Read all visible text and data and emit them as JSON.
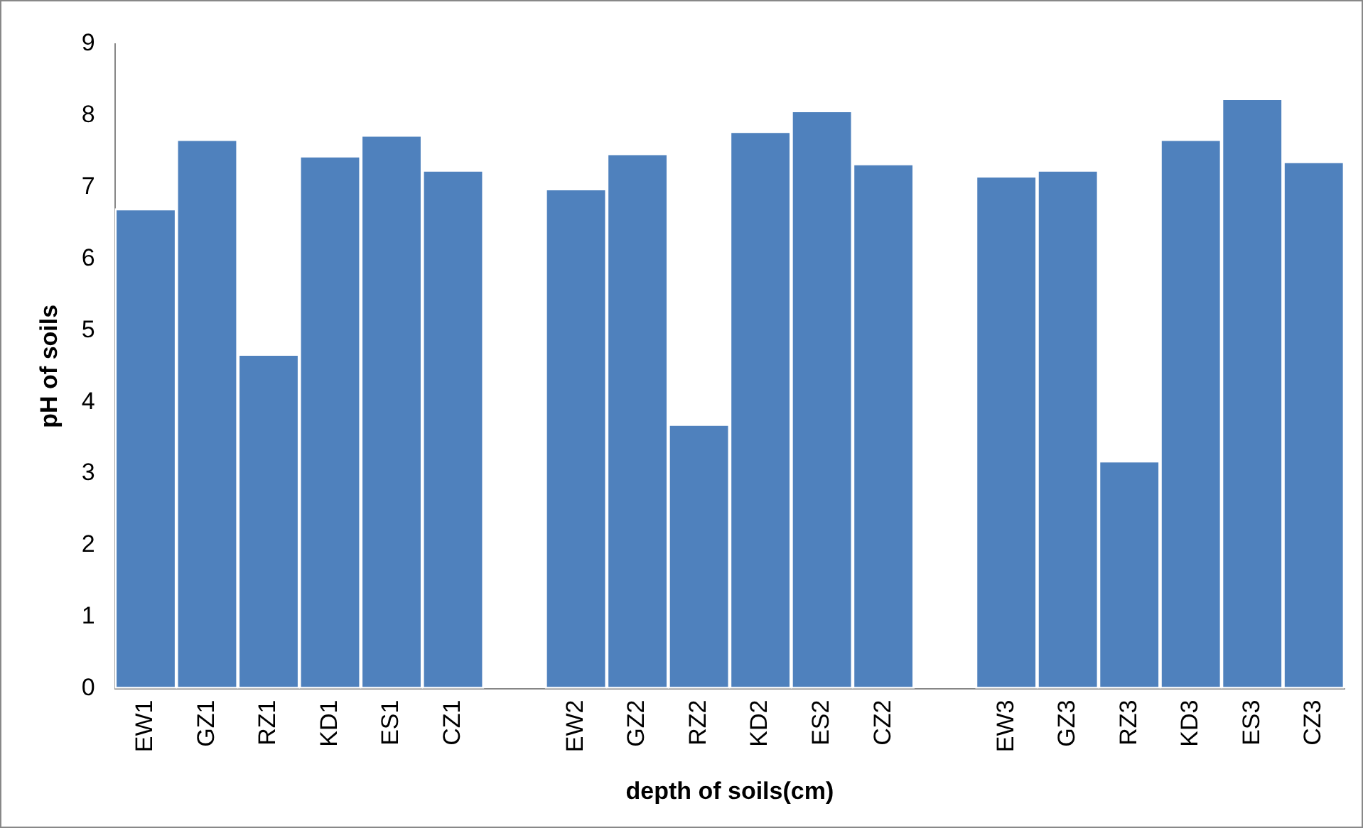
{
  "chart_data": {
    "type": "bar",
    "xlabel": "depth of soils(cm)",
    "ylabel": "pH of soils",
    "categories": [
      "EW1",
      "GZ1",
      "RZ1",
      "KD1",
      "ES1",
      "CZ1",
      null,
      "EW2",
      "GZ2",
      "RZ2",
      "KD2",
      "ES2",
      "CZ2",
      null,
      "EW3",
      "GZ3",
      "RZ3",
      "KD3",
      "ES3",
      "CZ3"
    ],
    "values": [
      6.7,
      7.67,
      4.67,
      7.44,
      7.73,
      7.24,
      null,
      6.98,
      7.47,
      3.69,
      7.78,
      8.07,
      7.33,
      null,
      7.16,
      7.24,
      3.18,
      7.67,
      8.24,
      7.36
    ],
    "color": "#4f81bd",
    "ylim": [
      0,
      9
    ],
    "yticks": [
      0,
      1,
      2,
      3,
      4,
      5,
      6,
      7,
      8,
      9
    ],
    "grid": false,
    "legend": false
  }
}
